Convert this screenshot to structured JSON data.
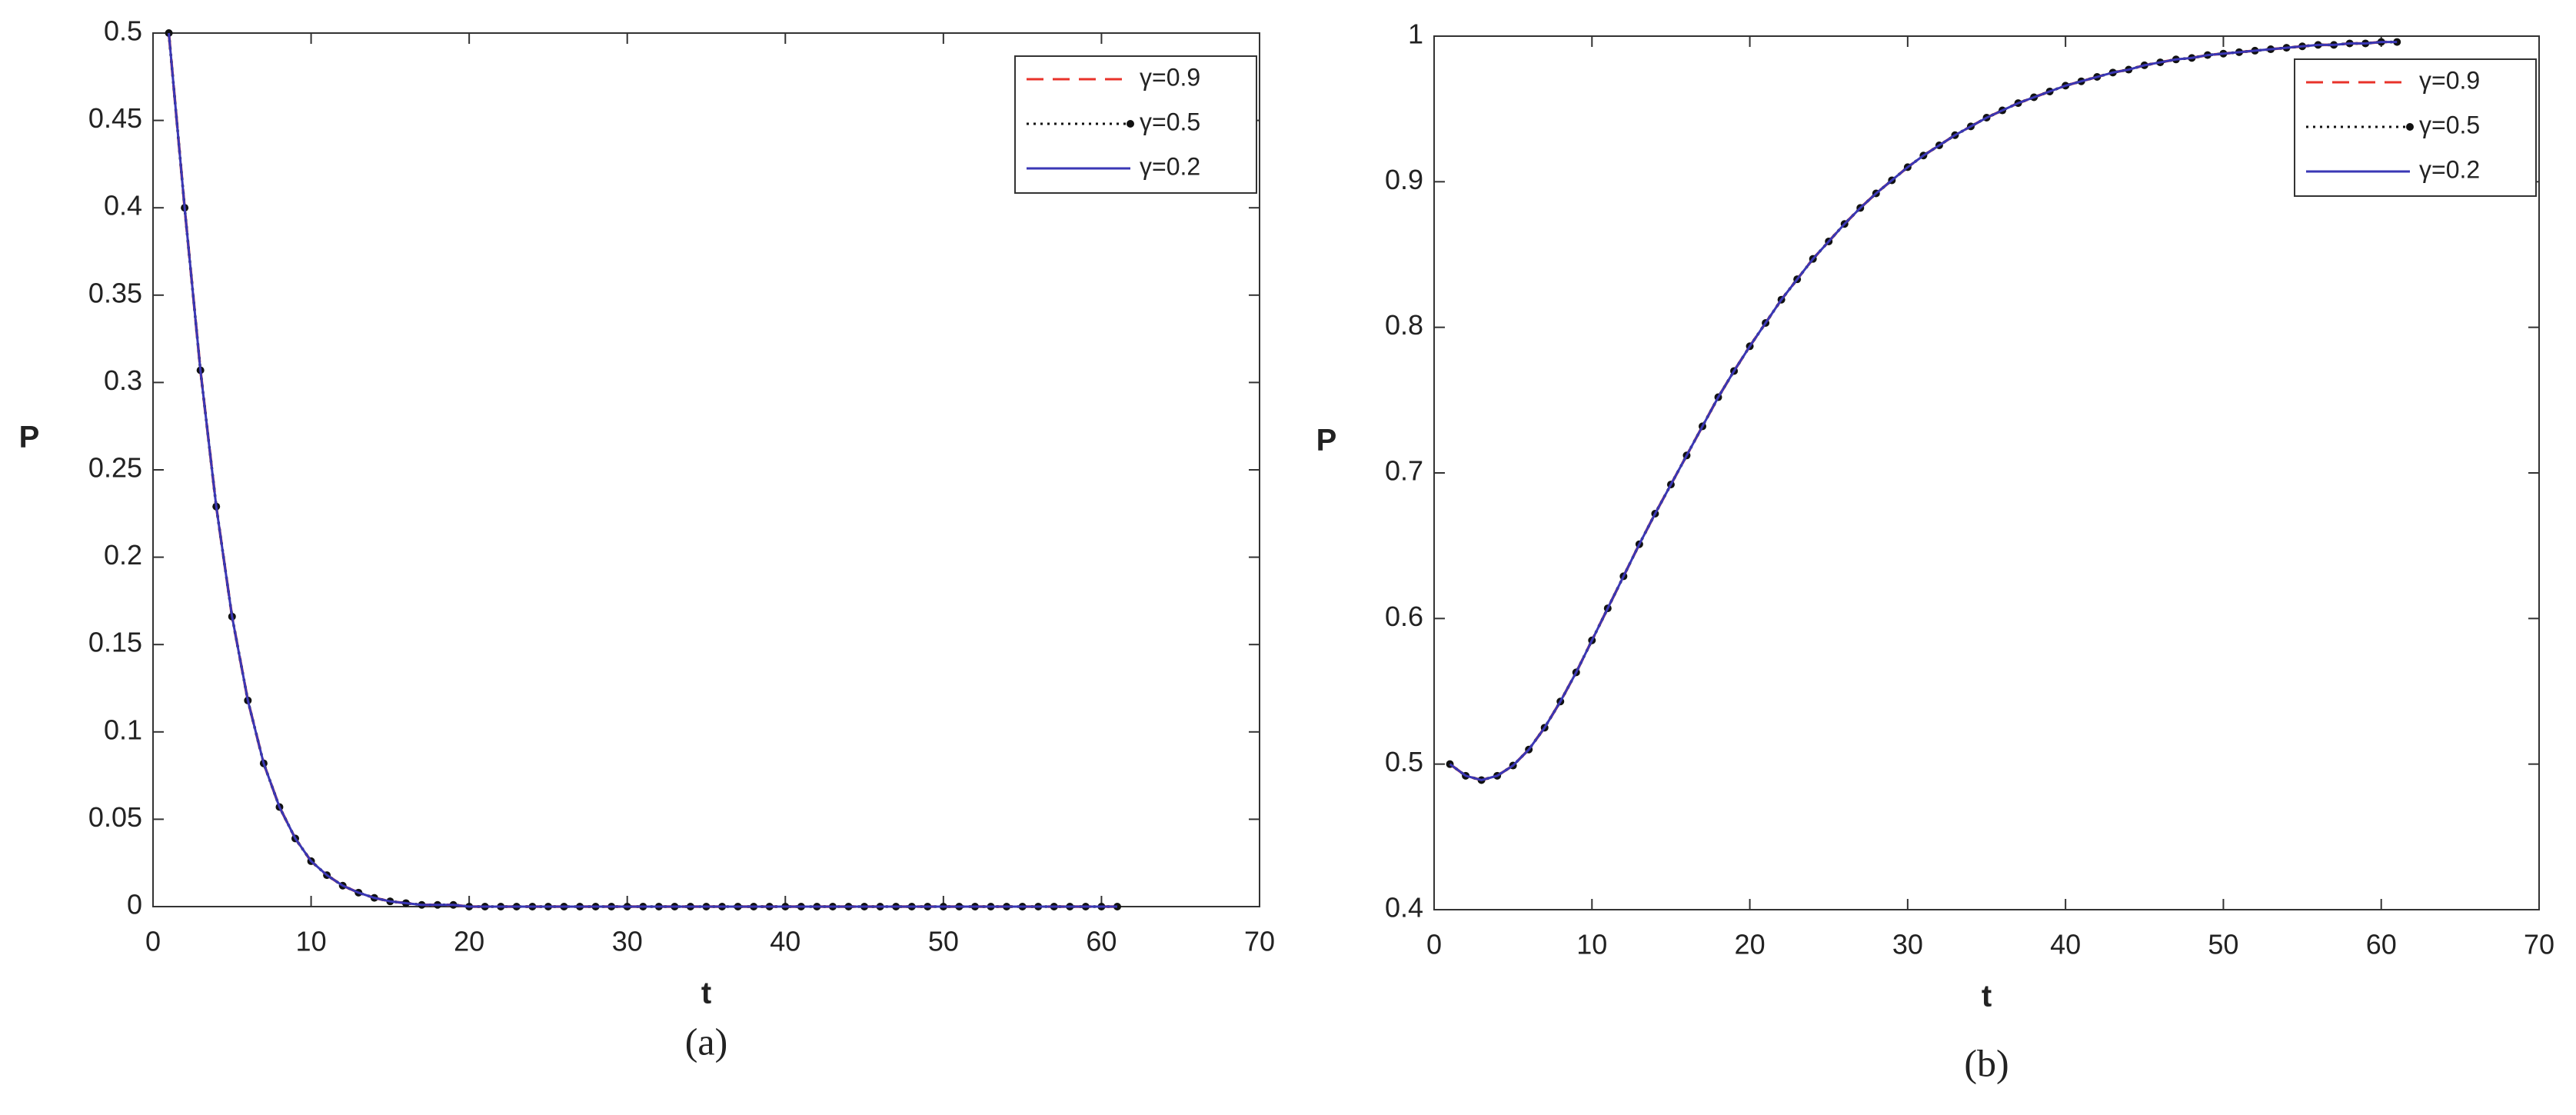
{
  "chart_data": [
    {
      "type": "line",
      "caption": "(a)",
      "xlabel": "t",
      "ylabel": "P",
      "xlim": [
        0,
        70
      ],
      "xticks": [
        0,
        10,
        20,
        30,
        40,
        50,
        60,
        70
      ],
      "ylim": [
        0,
        0.5
      ],
      "yticks": [
        0,
        0.05,
        0.1,
        0.15,
        0.2,
        0.25,
        0.3,
        0.35,
        0.4,
        0.45,
        0.5
      ],
      "legend": "upper right",
      "x": [
        1,
        2,
        3,
        4,
        5,
        6,
        7,
        8,
        9,
        10,
        11,
        12,
        13,
        14,
        15,
        16,
        17,
        18,
        19,
        20,
        21,
        22,
        23,
        24,
        25,
        26,
        27,
        28,
        29,
        30,
        31,
        32,
        33,
        34,
        35,
        36,
        37,
        38,
        39,
        40,
        41,
        42,
        43,
        44,
        45,
        46,
        47,
        48,
        49,
        50,
        51,
        52,
        53,
        54,
        55,
        56,
        57,
        58,
        59,
        60,
        61
      ],
      "series": [
        {
          "name": "γ=0.9",
          "color": "#e8322a",
          "style": "dashed",
          "values": [
            0.5,
            0.4,
            0.307,
            0.229,
            0.166,
            0.118,
            0.082,
            0.057,
            0.039,
            0.026,
            0.018,
            0.012,
            0.008,
            0.005,
            0.003,
            0.002,
            0.001,
            0.001,
            0.001,
            0,
            0,
            0,
            0,
            0,
            0,
            0,
            0,
            0,
            0,
            0,
            0,
            0,
            0,
            0,
            0,
            0,
            0,
            0,
            0,
            0,
            0,
            0,
            0,
            0,
            0,
            0,
            0,
            0,
            0,
            0,
            0,
            0,
            0,
            0,
            0,
            0,
            0,
            0,
            0,
            0,
            0
          ]
        },
        {
          "name": "γ=0.5",
          "color": "#111111",
          "style": "dotted",
          "marker": "dot",
          "values": [
            0.5,
            0.4,
            0.307,
            0.229,
            0.166,
            0.118,
            0.082,
            0.057,
            0.039,
            0.026,
            0.018,
            0.012,
            0.008,
            0.005,
            0.003,
            0.002,
            0.001,
            0.001,
            0.001,
            0,
            0,
            0,
            0,
            0,
            0,
            0,
            0,
            0,
            0,
            0,
            0,
            0,
            0,
            0,
            0,
            0,
            0,
            0,
            0,
            0,
            0,
            0,
            0,
            0,
            0,
            0,
            0,
            0,
            0,
            0,
            0,
            0,
            0,
            0,
            0,
            0,
            0,
            0,
            0,
            0,
            0
          ]
        },
        {
          "name": "γ=0.2",
          "color": "#3a37b5",
          "style": "solid",
          "values": [
            0.5,
            0.4,
            0.307,
            0.229,
            0.166,
            0.118,
            0.082,
            0.057,
            0.039,
            0.026,
            0.018,
            0.012,
            0.008,
            0.005,
            0.003,
            0.002,
            0.001,
            0.001,
            0.001,
            0,
            0,
            0,
            0,
            0,
            0,
            0,
            0,
            0,
            0,
            0,
            0,
            0,
            0,
            0,
            0,
            0,
            0,
            0,
            0,
            0,
            0,
            0,
            0,
            0,
            0,
            0,
            0,
            0,
            0,
            0,
            0,
            0,
            0,
            0,
            0,
            0,
            0,
            0,
            0,
            0,
            0
          ]
        }
      ]
    },
    {
      "type": "line",
      "caption": "(b)",
      "xlabel": "t",
      "ylabel": "P",
      "xlim": [
        0,
        70
      ],
      "xticks": [
        0,
        10,
        20,
        30,
        40,
        50,
        60,
        70
      ],
      "ylim": [
        0.4,
        1
      ],
      "yticks": [
        0.4,
        0.5,
        0.6,
        0.7,
        0.8,
        0.9,
        1
      ],
      "legend": "upper right",
      "x": [
        1,
        2,
        3,
        4,
        5,
        6,
        7,
        8,
        9,
        10,
        11,
        12,
        13,
        14,
        15,
        16,
        17,
        18,
        19,
        20,
        21,
        22,
        23,
        24,
        25,
        26,
        27,
        28,
        29,
        30,
        31,
        32,
        33,
        34,
        35,
        36,
        37,
        38,
        39,
        40,
        41,
        42,
        43,
        44,
        45,
        46,
        47,
        48,
        49,
        50,
        51,
        52,
        53,
        54,
        55,
        56,
        57,
        58,
        59,
        60,
        61
      ],
      "series": [
        {
          "name": "γ=0.9",
          "color": "#e8322a",
          "style": "dashed",
          "values": [
            0.5,
            0.492,
            0.489,
            0.492,
            0.499,
            0.51,
            0.525,
            0.543,
            0.563,
            0.585,
            0.607,
            0.629,
            0.651,
            0.672,
            0.692,
            0.712,
            0.732,
            0.752,
            0.77,
            0.787,
            0.803,
            0.819,
            0.833,
            0.847,
            0.859,
            0.871,
            0.882,
            0.892,
            0.901,
            0.91,
            0.918,
            0.925,
            0.932,
            0.938,
            0.944,
            0.949,
            0.954,
            0.958,
            0.962,
            0.966,
            0.969,
            0.972,
            0.975,
            0.977,
            0.98,
            0.982,
            0.984,
            0.985,
            0.987,
            0.988,
            0.989,
            0.99,
            0.991,
            0.992,
            0.993,
            0.994,
            0.994,
            0.995,
            0.995,
            0.996,
            0.996
          ]
        },
        {
          "name": "γ=0.5",
          "color": "#111111",
          "style": "dotted",
          "marker": "dot",
          "values": [
            0.5,
            0.492,
            0.489,
            0.492,
            0.499,
            0.51,
            0.525,
            0.543,
            0.563,
            0.585,
            0.607,
            0.629,
            0.651,
            0.672,
            0.692,
            0.712,
            0.732,
            0.752,
            0.77,
            0.787,
            0.803,
            0.819,
            0.833,
            0.847,
            0.859,
            0.871,
            0.882,
            0.892,
            0.901,
            0.91,
            0.918,
            0.925,
            0.932,
            0.938,
            0.944,
            0.949,
            0.954,
            0.958,
            0.962,
            0.966,
            0.969,
            0.972,
            0.975,
            0.977,
            0.98,
            0.982,
            0.984,
            0.985,
            0.987,
            0.988,
            0.989,
            0.99,
            0.991,
            0.992,
            0.993,
            0.994,
            0.994,
            0.995,
            0.995,
            0.996,
            0.996
          ]
        },
        {
          "name": "γ=0.2",
          "color": "#3a37b5",
          "style": "solid",
          "values": [
            0.5,
            0.492,
            0.489,
            0.492,
            0.499,
            0.51,
            0.525,
            0.543,
            0.563,
            0.585,
            0.607,
            0.629,
            0.651,
            0.672,
            0.692,
            0.712,
            0.732,
            0.752,
            0.77,
            0.787,
            0.803,
            0.819,
            0.833,
            0.847,
            0.859,
            0.871,
            0.882,
            0.892,
            0.901,
            0.91,
            0.918,
            0.925,
            0.932,
            0.938,
            0.944,
            0.949,
            0.954,
            0.958,
            0.962,
            0.966,
            0.969,
            0.972,
            0.975,
            0.977,
            0.98,
            0.982,
            0.984,
            0.985,
            0.987,
            0.988,
            0.989,
            0.99,
            0.991,
            0.992,
            0.993,
            0.994,
            0.994,
            0.995,
            0.995,
            0.996,
            0.996
          ]
        }
      ]
    }
  ]
}
